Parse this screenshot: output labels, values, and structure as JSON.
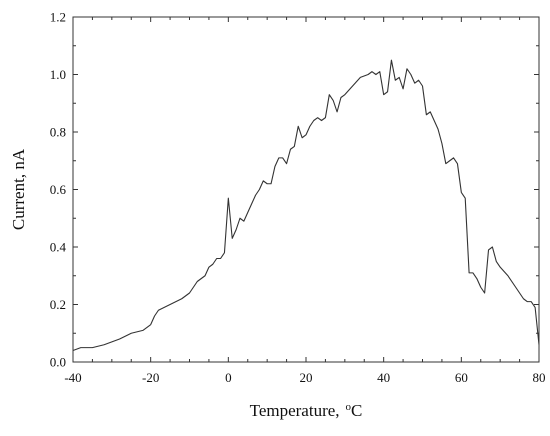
{
  "chart_data": {
    "type": "line",
    "title": "",
    "xlabel": "Temperature,",
    "xlabel_unit_sup": "o",
    "xlabel_unit": "C",
    "ylabel": "Current, nA",
    "xlim": [
      -40,
      80
    ],
    "ylim": [
      0.0,
      1.2
    ],
    "grid": false,
    "legend": "none",
    "line_color": "#333333",
    "x_ticks": [
      -40,
      -20,
      0,
      20,
      40,
      60,
      80
    ],
    "x_tick_labels": [
      "-40",
      "-20",
      "0",
      "20",
      "40",
      "60",
      "80"
    ],
    "y_ticks": [
      0.0,
      0.2,
      0.4,
      0.6,
      0.8,
      1.0,
      1.2
    ],
    "y_tick_labels": [
      "0.0",
      "0.2",
      "0.4",
      "0.6",
      "0.8",
      "1.0",
      "1.2"
    ],
    "series": [
      {
        "x": [
          -40,
          -38,
          -35,
          -32,
          -30,
          -28,
          -25,
          -22,
          -20,
          -19,
          -18,
          -15,
          -12,
          -10,
          -8,
          -6,
          -5,
          -4,
          -3,
          -2,
          -1,
          0,
          0.5,
          1,
          2,
          3,
          4,
          5,
          6,
          7,
          8,
          9,
          10,
          11,
          12,
          13,
          14,
          15,
          16,
          17,
          18,
          19,
          20,
          21,
          22,
          23,
          24,
          25,
          26,
          27,
          28,
          29,
          30,
          32,
          34,
          36,
          37,
          38,
          39,
          40,
          41,
          42,
          43,
          44,
          45,
          46,
          47,
          48,
          49,
          50,
          51,
          52,
          53,
          54,
          55,
          56,
          57,
          58,
          59,
          60,
          61,
          62,
          63,
          64,
          65,
          66,
          67,
          68,
          69,
          70,
          72,
          74,
          76,
          77,
          78,
          79,
          80
        ],
        "y": [
          0.04,
          0.05,
          0.05,
          0.06,
          0.07,
          0.08,
          0.1,
          0.11,
          0.13,
          0.16,
          0.18,
          0.2,
          0.22,
          0.24,
          0.28,
          0.3,
          0.33,
          0.34,
          0.36,
          0.36,
          0.38,
          0.57,
          0.5,
          0.43,
          0.46,
          0.5,
          0.49,
          0.52,
          0.55,
          0.58,
          0.6,
          0.63,
          0.62,
          0.62,
          0.68,
          0.71,
          0.71,
          0.69,
          0.74,
          0.75,
          0.82,
          0.78,
          0.79,
          0.82,
          0.84,
          0.85,
          0.84,
          0.85,
          0.93,
          0.91,
          0.87,
          0.92,
          0.93,
          0.96,
          0.99,
          1.0,
          1.01,
          1.0,
          1.01,
          0.93,
          0.94,
          1.05,
          0.98,
          0.99,
          0.95,
          1.02,
          1.0,
          0.97,
          0.98,
          0.96,
          0.86,
          0.87,
          0.84,
          0.81,
          0.76,
          0.69,
          0.7,
          0.71,
          0.69,
          0.59,
          0.57,
          0.31,
          0.31,
          0.29,
          0.26,
          0.24,
          0.39,
          0.4,
          0.35,
          0.33,
          0.3,
          0.26,
          0.22,
          0.21,
          0.21,
          0.19,
          0.06
        ]
      }
    ]
  }
}
